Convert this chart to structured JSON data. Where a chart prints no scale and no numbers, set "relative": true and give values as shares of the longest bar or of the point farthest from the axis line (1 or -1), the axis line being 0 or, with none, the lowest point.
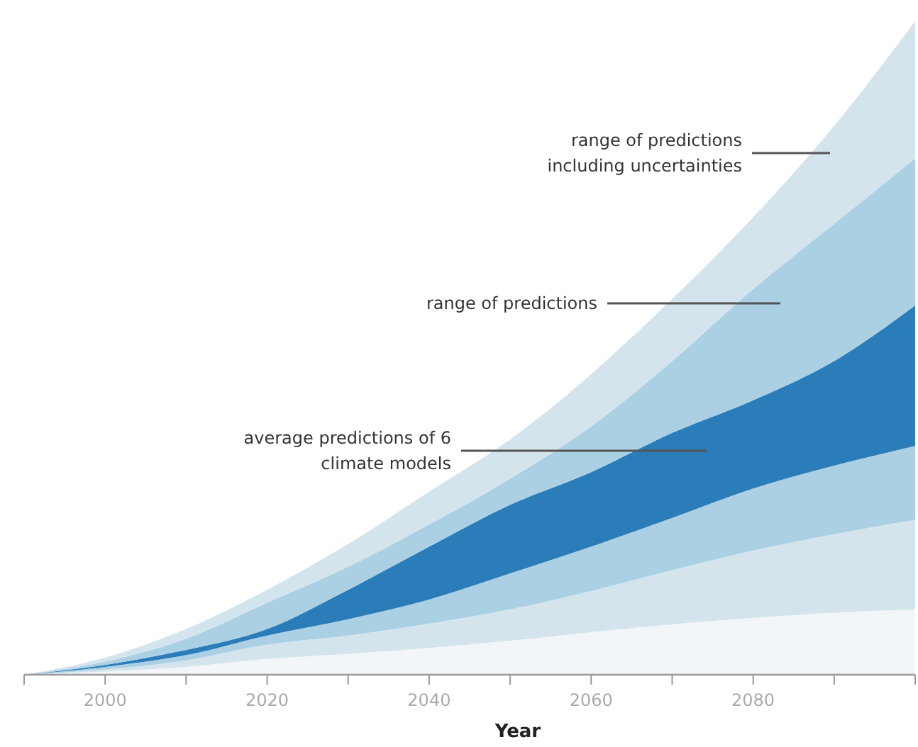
{
  "chart_data": {
    "type": "area",
    "relative": true,
    "stacked": true,
    "xlabel": "Year",
    "x": [
      1990,
      2000,
      2010,
      2020,
      2030,
      2040,
      2050,
      2060,
      2070,
      2080,
      2090,
      2100
    ],
    "xlim": [
      1990,
      2100
    ],
    "xticks": [
      {
        "value": 1990,
        "label": null
      },
      2000,
      {
        "value": 2010,
        "label": null
      },
      2020,
      {
        "value": 2030,
        "label": null
      },
      2040,
      {
        "value": 2050,
        "label": null
      },
      2060,
      {
        "value": 2070,
        "label": null
      },
      2080,
      {
        "value": 2090,
        "label": null
      },
      {
        "value": 2100,
        "label": null
      }
    ],
    "grid": false,
    "series": [
      {
        "color": "#f2f6f8",
        "values": [
          0,
          0.005,
          0.012,
          0.024,
          0.032,
          0.041,
          0.052,
          0.065,
          0.077,
          0.087,
          0.095,
          0.1
        ]
      },
      {
        "color": "#d3e4ec",
        "values": [
          0,
          0.003,
          0.01,
          0.022,
          0.028,
          0.037,
          0.048,
          0.063,
          0.083,
          0.103,
          0.12,
          0.137
        ]
      },
      {
        "color": "#abd0e4",
        "values": [
          0,
          0.004,
          0.008,
          0.014,
          0.025,
          0.037,
          0.055,
          0.068,
          0.08,
          0.095,
          0.105,
          0.113
        ]
      },
      {
        "color": "#2a7db8",
        "values": [
          0,
          0.003,
          0.008,
          0.01,
          0.045,
          0.081,
          0.105,
          0.114,
          0.13,
          0.135,
          0.16,
          0.215
        ]
      },
      {
        "color": "#abd0e4",
        "values": [
          0,
          0.005,
          0.017,
          0.04,
          0.035,
          0.034,
          0.04,
          0.07,
          0.11,
          0.17,
          0.21,
          0.225
        ]
      },
      {
        "color": "#d3e4ec",
        "values": [
          0,
          0.006,
          0.015,
          0.02,
          0.035,
          0.05,
          0.06,
          0.08,
          0.095,
          0.11,
          0.15,
          0.21
        ]
      }
    ],
    "annotations": [
      "range of predictions\nincluding uncertainties",
      "range of predictions",
      "average predictions of 6\nclimate models"
    ]
  }
}
